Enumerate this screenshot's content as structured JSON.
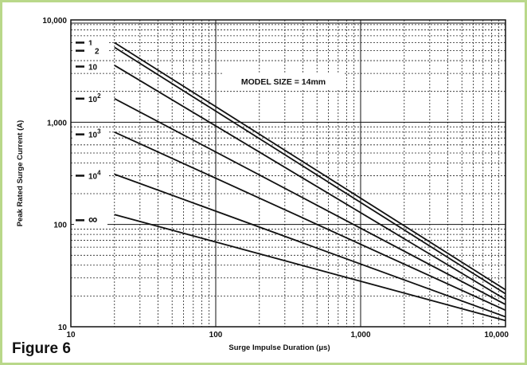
{
  "figure_caption": "Figure 6",
  "chart_data": {
    "type": "line",
    "title": "",
    "annotation": "MODEL SIZE = 14mm",
    "xlabel": "Surge Impulse Duration (μs)",
    "ylabel": "Peak Rated Surge Current (A)",
    "x_scale": "log",
    "y_scale": "log",
    "xlim": [
      10,
      10000
    ],
    "ylim": [
      10,
      10000
    ],
    "grid": true,
    "x_tick_labels": [
      {
        "value": 10,
        "label": "10"
      },
      {
        "value": 100,
        "label": "100"
      },
      {
        "value": 1000,
        "label": "1,000"
      },
      {
        "value": 10000,
        "label": "10,000"
      }
    ],
    "y_tick_labels": [
      {
        "value": 10,
        "label": "10"
      },
      {
        "value": 100,
        "label": "100"
      },
      {
        "value": 1000,
        "label": "1,000"
      },
      {
        "value": 10000,
        "label": "10,000"
      }
    ],
    "series": [
      {
        "name": "1",
        "label_base": "1",
        "label_exp": "",
        "label_y": 6000,
        "x": [
          20,
          10000
        ],
        "y": [
          6000,
          23
        ]
      },
      {
        "name": "2",
        "label_base": "2",
        "label_exp": "",
        "label_y": 5000,
        "x": [
          20,
          10000
        ],
        "y": [
          5400,
          21
        ]
      },
      {
        "name": "10",
        "label_base": "10",
        "label_exp": "",
        "label_y": 3500,
        "x": [
          20,
          10000
        ],
        "y": [
          3600,
          18.5
        ]
      },
      {
        "name": "10^2",
        "label_base": "10",
        "label_exp": "2",
        "label_y": 1700,
        "x": [
          20,
          10000
        ],
        "y": [
          1700,
          16.5
        ]
      },
      {
        "name": "10^3",
        "label_base": "10",
        "label_exp": "3",
        "label_y": 760,
        "x": [
          20,
          10000
        ],
        "y": [
          800,
          14.5
        ]
      },
      {
        "name": "10^4",
        "label_base": "10",
        "label_exp": "4",
        "label_y": 300,
        "x": [
          20,
          10000
        ],
        "y": [
          310,
          12.5
        ]
      },
      {
        "name": "∞",
        "label_base": "∞",
        "label_exp": "",
        "label_y": 110,
        "x": [
          20,
          10000
        ],
        "y": [
          125,
          11.5
        ]
      }
    ]
  }
}
